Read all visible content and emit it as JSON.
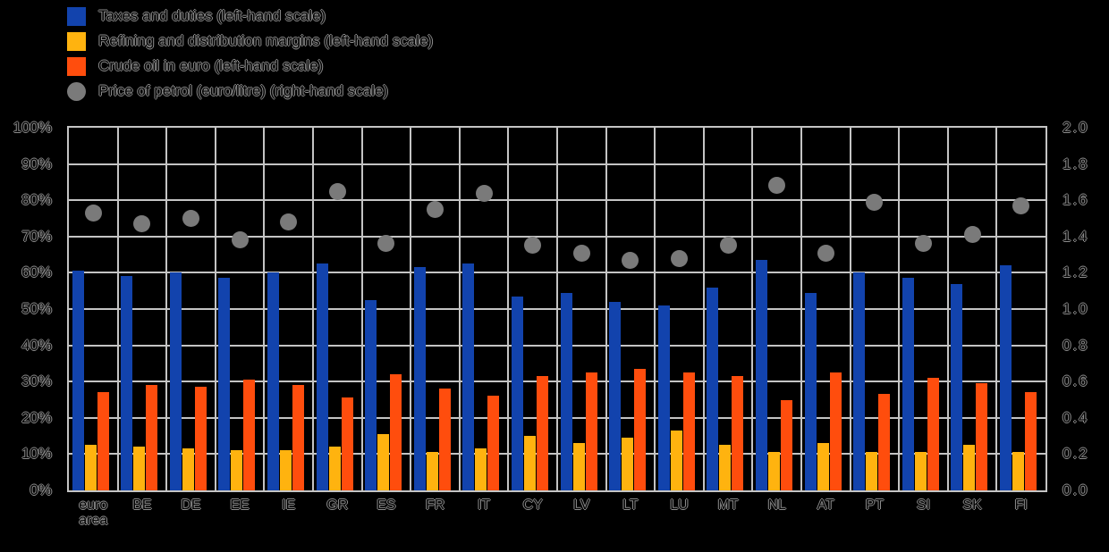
{
  "colors": {
    "background": "#000000",
    "grid": "#c4c4c4",
    "taxes": "#1243ad",
    "margins": "#ffb30f",
    "crude": "#ff4d0d",
    "price_dot": "#7a7a7a",
    "text_outline": "#8c8c8c"
  },
  "legend": [
    {
      "label": "Taxes and duties (left-hand scale)",
      "color": "#1243ad",
      "marker": "square"
    },
    {
      "label": "Refining and distribution margins (left-hand scale)",
      "color": "#ffb30f",
      "marker": "square"
    },
    {
      "label": "Crude oil in euro (left-hand scale)",
      "color": "#ff4d0d",
      "marker": "square"
    },
    {
      "label": "Price of petrol (euro/litre) (right-hand scale)",
      "color": "#7a7a7a",
      "marker": "circle"
    }
  ],
  "axes": {
    "left_ticks": [
      "100%",
      "90%",
      "80%",
      "70%",
      "60%",
      "50%",
      "40%",
      "30%",
      "20%",
      "10%",
      "0%"
    ],
    "right_ticks": [
      "2.0",
      "1.8",
      "1.6",
      "1.4",
      "1.2",
      "1.0",
      "0.8",
      "0.6",
      "0.4",
      "0.2",
      "0.0"
    ]
  },
  "chart_data": {
    "type": "bar",
    "title": "",
    "xlabel": "",
    "ylabel_left": "%",
    "ylabel_right": "euro/litre",
    "grid": true,
    "legend_position": "top-left",
    "left_axis": {
      "min": 0,
      "max": 100,
      "step": 10,
      "unit": "%"
    },
    "right_axis": {
      "min": 0.0,
      "max": 2.0,
      "step": 0.2
    },
    "categories": [
      "euro area",
      "BE",
      "DE",
      "EE",
      "IE",
      "GR",
      "ES",
      "FR",
      "IT",
      "CY",
      "LV",
      "LT",
      "LU",
      "MT",
      "NL",
      "AT",
      "PT",
      "SI",
      "SK",
      "FI"
    ],
    "series": [
      {
        "name": "Taxes and duties",
        "type": "bar",
        "axis": "left",
        "color": "#1243ad",
        "values": [
          60.5,
          59,
          60,
          58.5,
          60,
          62.5,
          52.5,
          61.5,
          62.5,
          53.5,
          54.5,
          52,
          51,
          56,
          63.5,
          54.5,
          60,
          58.5,
          57,
          62
        ]
      },
      {
        "name": "Refining and distribution margins",
        "type": "bar",
        "axis": "left",
        "color": "#ffb30f",
        "values": [
          12.5,
          12,
          11.5,
          11,
          11,
          12,
          15.5,
          10.5,
          11.5,
          15,
          13,
          14.5,
          16.5,
          12.5,
          10.5,
          13,
          10.5,
          10.5,
          12.5,
          10.5
        ]
      },
      {
        "name": "Crude oil in euro",
        "type": "bar",
        "axis": "left",
        "color": "#ff4d0d",
        "values": [
          27,
          29,
          28.5,
          30.5,
          29,
          25.5,
          32,
          28,
          26,
          31.5,
          32.5,
          33.5,
          32.5,
          31.5,
          25,
          32.5,
          26.5,
          31,
          29.5,
          27
        ]
      },
      {
        "name": "Price of petrol (euro/litre)",
        "type": "scatter",
        "axis": "right",
        "color": "#7a7a7a",
        "values": [
          1.53,
          1.47,
          1.5,
          1.38,
          1.48,
          1.65,
          1.36,
          1.55,
          1.64,
          1.35,
          1.31,
          1.27,
          1.28,
          1.35,
          1.68,
          1.31,
          1.59,
          1.36,
          1.41,
          1.57
        ]
      }
    ]
  }
}
